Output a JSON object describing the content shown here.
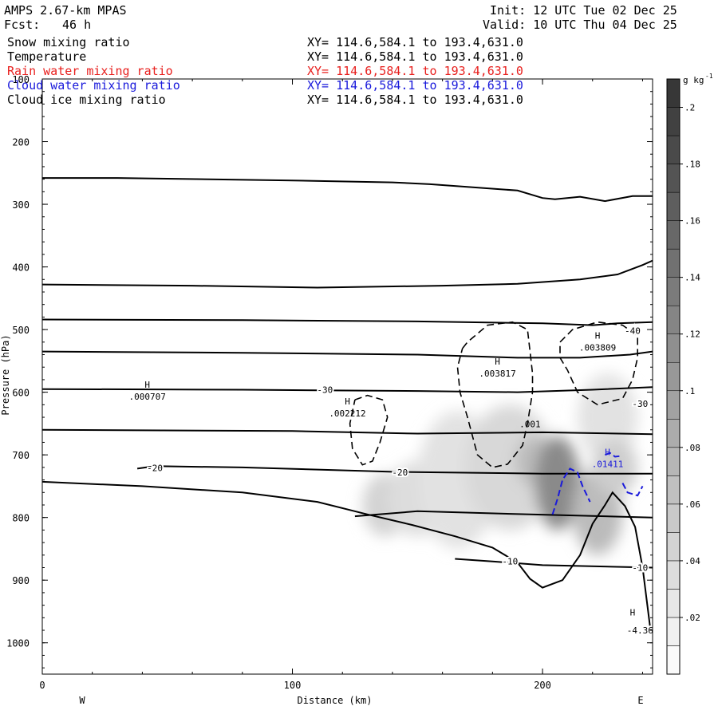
{
  "header": {
    "model": "AMPS 2.67-km MPAS",
    "init": "Init: 12 UTC Tue 02 Dec 25",
    "fcst_label": "Fcst:",
    "fcst_value": "46 h",
    "valid": "Valid: 10 UTC Thu 04 Dec 25"
  },
  "legend": [
    {
      "name": "Snow mixing ratio",
      "range": "XY= 114.6,584.1 to 193.4,631.0",
      "color": "#000000"
    },
    {
      "name": "Temperature",
      "range": "XY= 114.6,584.1 to 193.4,631.0",
      "color": "#000000"
    },
    {
      "name": "Rain water mixing ratio",
      "range": "XY= 114.6,584.1 to 193.4,631.0",
      "color": "#e8201e"
    },
    {
      "name": "Cloud water mixing ratio",
      "range": "XY= 114.6,584.1 to 193.4,631.0",
      "color": "#1a1adb"
    },
    {
      "name": "Cloud ice mixing ratio",
      "range": "XY= 114.6,584.1 to 193.4,631.0",
      "color": "#000000"
    }
  ],
  "chart_data": {
    "type": "cross-section",
    "xlabel": "Distance (km)",
    "ylabel": "Pressure (hPa)",
    "xlim": [
      0,
      244
    ],
    "ylim": [
      100,
      1050
    ],
    "x_ticks": [
      0,
      100,
      200
    ],
    "y_ticks": [
      100,
      200,
      300,
      400,
      500,
      600,
      700,
      800,
      900,
      1000
    ],
    "x_end_labels": {
      "left": "W",
      "right": "E"
    },
    "colorbar": {
      "unit": "g kg",
      "unit_sup": "-1",
      "levels": [
        0,
        0.01,
        0.02,
        0.03,
        0.04,
        0.05,
        0.06,
        0.07,
        0.08,
        0.09,
        0.1,
        0.11,
        0.12,
        0.13,
        0.14,
        0.15,
        0.16,
        0.17,
        0.18,
        0.19,
        0.2,
        0.21
      ],
      "labels": [
        ".02",
        ".04",
        ".06",
        ".08",
        ".1",
        ".12",
        ".14",
        ".16",
        ".18",
        ".2"
      ]
    },
    "temperature_contours": [
      {
        "points": [
          [
            0,
            258
          ],
          [
            30,
            258
          ],
          [
            100,
            262
          ],
          [
            140,
            265
          ],
          [
            155,
            268
          ],
          [
            190,
            278
          ],
          [
            200,
            290
          ],
          [
            205,
            292
          ],
          [
            215,
            288
          ],
          [
            225,
            295
          ],
          [
            236,
            287
          ],
          [
            244,
            287
          ]
        ]
      },
      {
        "points": [
          [
            0,
            428
          ],
          [
            60,
            430
          ],
          [
            110,
            433
          ],
          [
            160,
            430
          ],
          [
            190,
            427
          ],
          [
            215,
            420
          ],
          [
            230,
            412
          ],
          [
            240,
            397
          ],
          [
            244,
            390
          ]
        ]
      },
      {
        "points": [
          [
            0,
            484
          ],
          [
            80,
            485
          ],
          [
            150,
            487
          ],
          [
            200,
            490
          ],
          [
            220,
            493
          ],
          [
            230,
            490
          ],
          [
            244,
            488
          ]
        ]
      },
      {
        "points": [
          [
            0,
            535
          ],
          [
            80,
            537
          ],
          [
            150,
            540
          ],
          [
            190,
            545
          ],
          [
            215,
            545
          ],
          [
            235,
            540
          ],
          [
            244,
            535
          ]
        ]
      },
      {
        "points": [
          [
            0,
            595
          ],
          [
            80,
            596
          ],
          [
            110,
            597
          ],
          [
            150,
            598
          ],
          [
            190,
            600
          ],
          [
            220,
            596
          ],
          [
            244,
            592
          ]
        ]
      },
      {
        "points": [
          [
            0,
            660
          ],
          [
            100,
            662
          ],
          [
            150,
            666
          ],
          [
            200,
            664
          ],
          [
            244,
            667
          ]
        ]
      },
      {
        "points": [
          [
            38,
            722
          ],
          [
            45,
            718
          ],
          [
            80,
            720
          ],
          [
            140,
            727
          ],
          [
            200,
            730
          ],
          [
            244,
            730
          ]
        ]
      },
      {
        "points": [
          [
            125,
            798
          ],
          [
            150,
            790
          ],
          [
            195,
            795
          ],
          [
            244,
            800
          ]
        ]
      },
      {
        "points": [
          [
            165,
            866
          ],
          [
            180,
            870
          ],
          [
            200,
            876
          ],
          [
            244,
            880
          ]
        ]
      }
    ],
    "terrain": [
      [
        0,
        743
      ],
      [
        40,
        750
      ],
      [
        80,
        760
      ],
      [
        110,
        775
      ],
      [
        130,
        795
      ],
      [
        148,
        812
      ],
      [
        165,
        830
      ],
      [
        180,
        848
      ],
      [
        190,
        872
      ],
      [
        195,
        898
      ],
      [
        200,
        912
      ],
      [
        208,
        900
      ],
      [
        215,
        860
      ],
      [
        220,
        810
      ],
      [
        225,
        780
      ],
      [
        228,
        760
      ],
      [
        233,
        782
      ],
      [
        237,
        815
      ],
      [
        240,
        880
      ],
      [
        243,
        975
      ],
      [
        244,
        984
      ]
    ],
    "temperature_labels": [
      {
        "text": "-40",
        "x": 236,
        "p": 502
      },
      {
        "text": "-30",
        "x": 113,
        "p": 596
      },
      {
        "text": "-30",
        "x": 239,
        "p": 618
      },
      {
        "text": "-20",
        "x": 45,
        "p": 721
      },
      {
        "text": "-20",
        "x": 143,
        "p": 728
      },
      {
        "text": "-10",
        "x": 187,
        "p": 870
      },
      {
        "text": "-10",
        "x": 239,
        "p": 880
      },
      {
        "text": "-4.36",
        "x": 239,
        "p": 980
      }
    ],
    "snow_contours": [
      [
        [
          125,
          612
        ],
        [
          130,
          605
        ],
        [
          136,
          612
        ],
        [
          138,
          640
        ],
        [
          135,
          680
        ],
        [
          132,
          710
        ],
        [
          128,
          716
        ],
        [
          124,
          690
        ],
        [
          123,
          650
        ],
        [
          125,
          612
        ]
      ],
      [
        [
          168,
          530
        ],
        [
          170,
          520
        ],
        [
          178,
          493
        ],
        [
          188,
          488
        ],
        [
          194,
          500
        ],
        [
          195,
          535
        ],
        [
          196,
          570
        ],
        [
          196,
          600
        ],
        [
          194,
          650
        ],
        [
          192,
          685
        ],
        [
          186,
          715
        ],
        [
          180,
          720
        ],
        [
          174,
          700
        ],
        [
          170,
          640
        ],
        [
          167,
          600
        ],
        [
          166,
          560
        ],
        [
          168,
          530
        ]
      ],
      [
        [
          207,
          520
        ],
        [
          212,
          500
        ],
        [
          222,
          488
        ],
        [
          232,
          493
        ],
        [
          238,
          510
        ],
        [
          238,
          545
        ],
        [
          236,
          580
        ],
        [
          232,
          610
        ],
        [
          222,
          620
        ],
        [
          214,
          600
        ],
        [
          210,
          565
        ],
        [
          207,
          545
        ],
        [
          207,
          520
        ]
      ]
    ],
    "cloud_water_contours": [
      [
        [
          204,
          795
        ],
        [
          206,
          770
        ],
        [
          208,
          740
        ],
        [
          211,
          722
        ],
        [
          214,
          728
        ],
        [
          216,
          750
        ],
        [
          219,
          775
        ]
      ],
      [
        [
          225,
          700
        ],
        [
          227,
          697
        ],
        [
          229,
          703
        ],
        [
          231,
          702
        ]
      ],
      [
        [
          232,
          745
        ],
        [
          234,
          760
        ],
        [
          238,
          765
        ],
        [
          240,
          750
        ]
      ]
    ],
    "maxima": [
      {
        "label": "H",
        "value": ".000707",
        "x": 42,
        "p": 608
      },
      {
        "label": "H",
        "value": ".002212",
        "x": 122,
        "p": 635
      },
      {
        "label": "H",
        "value": ".003817",
        "x": 182,
        "p": 571
      },
      {
        "label": "H",
        "value": ".003809",
        "x": 222,
        "p": 530
      },
      {
        "label": "H",
        "value": ".01411",
        "x": 226,
        "p": 716
      },
      {
        "label": "H",
        "value": "",
        "x": 236,
        "p": 972
      }
    ],
    "misc_labels": [
      {
        "text": ".001",
        "x": 195,
        "p": 651
      }
    ],
    "shading": [
      {
        "x": 137,
        "p": 780,
        "rx": 9,
        "rp": 50,
        "value": 0.045
      },
      {
        "x": 150,
        "p": 770,
        "rx": 12,
        "rp": 60,
        "value": 0.035
      },
      {
        "x": 166,
        "p": 740,
        "rx": 16,
        "rp": 110,
        "value": 0.03
      },
      {
        "x": 187,
        "p": 720,
        "rx": 18,
        "rp": 100,
        "value": 0.04
      },
      {
        "x": 197,
        "p": 710,
        "rx": 8,
        "rp": 40,
        "value": 0.07
      },
      {
        "x": 206,
        "p": 745,
        "rx": 9,
        "rp": 75,
        "value": 0.12
      },
      {
        "x": 222,
        "p": 790,
        "rx": 10,
        "rp": 70,
        "value": 0.07
      },
      {
        "x": 226,
        "p": 640,
        "rx": 12,
        "rp": 70,
        "value": 0.03
      },
      {
        "x": 229,
        "p": 720,
        "rx": 9,
        "rp": 45,
        "value": 0.05
      }
    ]
  }
}
